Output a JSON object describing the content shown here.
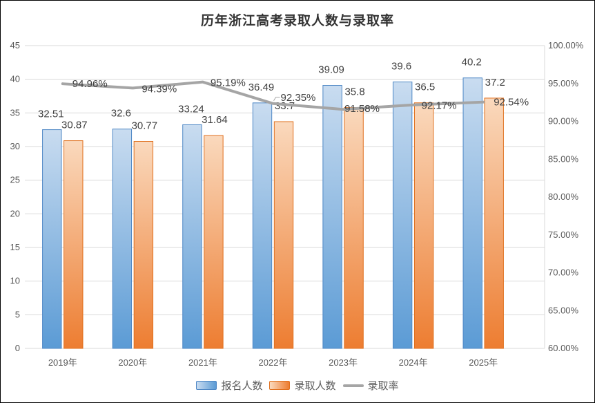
{
  "chart_data": {
    "type": "bar+line",
    "title": "历年浙江高考录取人数与录取率",
    "categories": [
      "2019年",
      "2020年",
      "2021年",
      "2022年",
      "2023年",
      "2024年",
      "2025年"
    ],
    "series": [
      {
        "name": "报名人数",
        "type": "bar",
        "axis": "left",
        "values": [
          32.51,
          32.6,
          33.24,
          36.49,
          39.09,
          39.6,
          40.2
        ],
        "labels": [
          "32.51",
          "32.6",
          "33.24",
          "36.49",
          "39.09",
          "39.6",
          "40.2"
        ],
        "color": "#5B9BD5",
        "fill_light": "#C9DCF0",
        "fill_dark": "#5B9BD5",
        "border": "#4E87C5"
      },
      {
        "name": "录取人数",
        "type": "bar",
        "axis": "left",
        "values": [
          30.87,
          30.77,
          31.64,
          33.7,
          35.8,
          36.5,
          37.2
        ],
        "labels": [
          "30.87",
          "30.77",
          "31.64",
          "33.7",
          "35.8",
          "36.5",
          "37.2"
        ],
        "color": "#ED7D31",
        "fill_light": "#FAD9BD",
        "fill_dark": "#ED7D31",
        "border": "#E0701E"
      },
      {
        "name": "录取率",
        "type": "line",
        "axis": "right",
        "values": [
          94.96,
          94.39,
          95.19,
          92.35,
          91.58,
          92.17,
          92.54
        ],
        "labels": [
          "94.96%",
          "94.39%",
          "95.19%",
          "92.35%",
          "91.58%",
          "92.17%",
          "92.54%"
        ],
        "color": "#A5A5A5",
        "label_offsets": [
          [
            14,
            5
          ],
          [
            13,
            6
          ],
          [
            11,
            6
          ],
          [
            11,
            -4
          ],
          [
            2,
            4
          ],
          [
            12,
            6
          ],
          [
            15,
            5
          ]
        ],
        "leader_index": 3
      }
    ],
    "left_axis": {
      "min": 0,
      "max": 45,
      "step": 5,
      "ticks": [
        "0",
        "5",
        "10",
        "15",
        "20",
        "25",
        "30",
        "35",
        "40",
        "45"
      ]
    },
    "right_axis": {
      "min": 60,
      "max": 100,
      "step": 5,
      "ticks": [
        "60.00%",
        "65.00%",
        "70.00%",
        "75.00%",
        "80.00%",
        "85.00%",
        "90.00%",
        "95.00%",
        "100.00%"
      ]
    },
    "grid": true,
    "gridline_color": "#D9D9D9",
    "legend_position": "bottom"
  }
}
